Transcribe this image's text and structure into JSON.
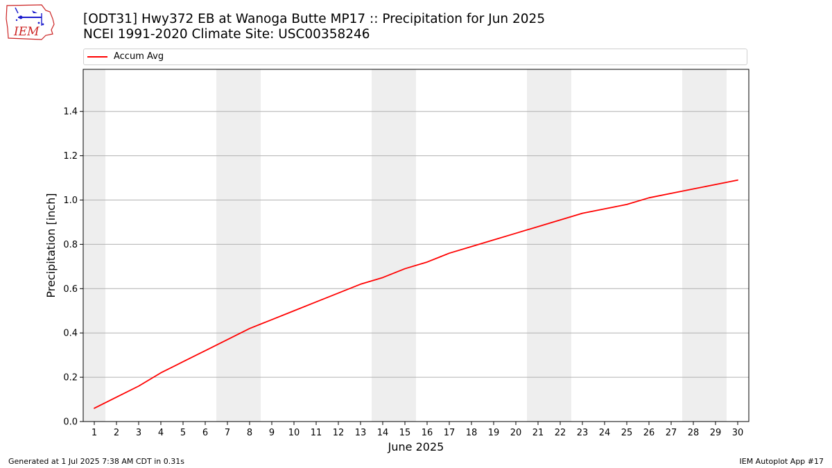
{
  "header": {
    "title_line1": "[ODT31] Hwy372 EB at Wanoga Butte MP17  :: Precipitation for Jun 2025",
    "title_line2": "NCEI 1991-2020 Climate Site: USC00358246"
  },
  "logo": {
    "text": "IEM",
    "icon": "iowa-state-outline-weather-station-logo",
    "text_color": "#cc2222",
    "outline_color": "#cc2222",
    "station_color": "#1a1acc"
  },
  "footer": {
    "left": "Generated at 1 Jul 2025 7:38 AM CDT in 0.31s",
    "right": "IEM Autoplot App #17"
  },
  "chart_data": {
    "type": "line",
    "xlabel": "June 2025",
    "ylabel": "Precipitation [inch]",
    "xlim": [
      0.5,
      30.5
    ],
    "ylim": [
      0.0,
      1.59
    ],
    "x": [
      1,
      2,
      3,
      4,
      5,
      6,
      7,
      8,
      9,
      10,
      11,
      12,
      13,
      14,
      15,
      16,
      17,
      18,
      19,
      20,
      21,
      22,
      23,
      24,
      25,
      26,
      27,
      28,
      29,
      30
    ],
    "x_tick_labels": [
      "1",
      "2",
      "3",
      "4",
      "5",
      "6",
      "7",
      "8",
      "9",
      "10",
      "11",
      "12",
      "13",
      "14",
      "15",
      "16",
      "17",
      "18",
      "19",
      "20",
      "21",
      "22",
      "23",
      "24",
      "25",
      "26",
      "27",
      "28",
      "29",
      "30"
    ],
    "y_ticks": [
      0.0,
      0.2,
      0.4,
      0.6,
      0.8,
      1.0,
      1.2,
      1.4
    ],
    "y_tick_labels": [
      "0.0",
      "0.2",
      "0.4",
      "0.6",
      "0.8",
      "1.0",
      "1.2",
      "1.4"
    ],
    "grid": "horizontal",
    "legend_placement": "top, above plot",
    "weekend_shading": [
      [
        0.5,
        1.5
      ],
      [
        6.5,
        8.5
      ],
      [
        13.5,
        15.5
      ],
      [
        20.5,
        22.5
      ],
      [
        27.5,
        29.5
      ]
    ],
    "shading_color": "#eeeeee",
    "series": [
      {
        "name": "Accum Avg",
        "color": "#ff0000",
        "values": [
          0.06,
          0.11,
          0.16,
          0.22,
          0.27,
          0.32,
          0.37,
          0.42,
          0.46,
          0.5,
          0.54,
          0.58,
          0.62,
          0.65,
          0.69,
          0.72,
          0.76,
          0.79,
          0.82,
          0.85,
          0.88,
          0.91,
          0.94,
          0.96,
          0.98,
          1.01,
          1.03,
          1.05,
          1.07,
          1.09
        ]
      }
    ]
  }
}
